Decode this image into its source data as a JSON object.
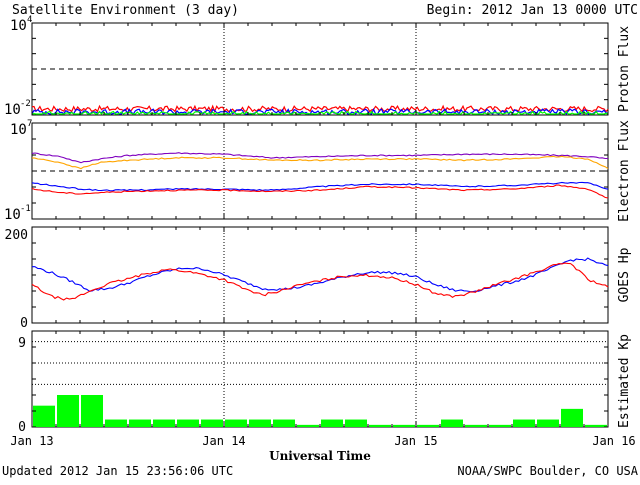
{
  "header": {
    "title": "Satellite Environment (3 day)",
    "begin": "Begin:  2012 Jan 13 0000 UTC"
  },
  "footer": {
    "updated": "Updated 2012 Jan 15 23:56:06 UTC",
    "source": "NOAA/SWPC Boulder, CO USA"
  },
  "x_axis": {
    "label": "Universal Time",
    "ticks": [
      "Jan 13",
      "Jan 14",
      "Jan 15",
      "Jan 16"
    ]
  },
  "colors": {
    "red": "#ff0000",
    "blue": "#0000ff",
    "green": "#00ff00",
    "orange": "#ffa500",
    "purple": "#7f00bf",
    "bar_green": "#00ff00"
  },
  "chart_data": [
    {
      "type": "line",
      "ylabel": "Proton Flux",
      "y_scale": "log",
      "ytick_labels": [
        {
          "base": "10",
          "exp": "4"
        },
        {
          "base": "10",
          "exp": "-2"
        }
      ],
      "ylim_log": [
        -2,
        4
      ],
      "threshold_log": 1,
      "x_days": [
        0,
        3
      ],
      "series": [
        {
          "color": "#ff0000",
          "x": [
            0,
            0.25,
            0.5,
            0.75,
            1,
            1.25,
            1.5,
            1.75,
            2,
            2.25,
            2.5,
            2.75,
            3
          ],
          "log_values": [
            -1.6,
            -1.6,
            -1.6,
            -1.6,
            -1.6,
            -1.6,
            -1.6,
            -1.6,
            -1.6,
            -1.6,
            -1.6,
            -1.6,
            -1.6
          ]
        },
        {
          "color": "#0000ff",
          "x": [
            0,
            0.25,
            0.5,
            0.75,
            1,
            1.25,
            1.5,
            1.75,
            2,
            2.25,
            2.5,
            2.75,
            3
          ],
          "log_values": [
            -1.8,
            -1.8,
            -1.8,
            -1.8,
            -1.8,
            -1.8,
            -1.8,
            -1.8,
            -1.8,
            -1.8,
            -1.8,
            -1.8,
            -1.8
          ]
        },
        {
          "color": "#00ff00",
          "x": [
            0,
            0.25,
            0.5,
            0.75,
            1,
            1.25,
            1.5,
            1.75,
            2,
            2.25,
            2.5,
            2.75,
            3
          ],
          "log_values": [
            -1.95,
            -1.95,
            -1.95,
            -1.95,
            -1.95,
            -1.95,
            -1.95,
            -1.95,
            -1.95,
            -1.95,
            -1.95,
            -1.95,
            -1.95
          ]
        }
      ]
    },
    {
      "type": "line",
      "ylabel": "Electron Flux",
      "y_scale": "log",
      "ytick_labels": [
        {
          "base": "10",
          "exp": "7"
        },
        {
          "base": "10",
          "exp": "-1"
        }
      ],
      "ylim_log": [
        -1,
        7
      ],
      "threshold_log": 3,
      "x_days": [
        0,
        3
      ],
      "series": [
        {
          "color": "#7f00bf",
          "x": [
            0,
            0.15,
            0.25,
            0.35,
            0.5,
            0.75,
            1,
            1.25,
            1.5,
            1.75,
            2,
            2.25,
            2.5,
            2.75,
            2.9,
            3
          ],
          "log_values": [
            4.5,
            4.2,
            3.7,
            4.0,
            4.3,
            4.5,
            4.4,
            4.1,
            4.2,
            4.3,
            4.3,
            4.4,
            4.4,
            4.3,
            4.2,
            4.0
          ]
        },
        {
          "color": "#ffa500",
          "x": [
            0,
            0.15,
            0.25,
            0.35,
            0.5,
            0.75,
            1,
            1.25,
            1.5,
            1.75,
            2,
            2.25,
            2.5,
            2.75,
            2.9,
            3
          ],
          "log_values": [
            4.1,
            3.7,
            3.2,
            3.7,
            3.9,
            4.1,
            4.1,
            3.9,
            3.9,
            4.0,
            4.0,
            3.9,
            4.0,
            4.2,
            4.0,
            3.2
          ]
        },
        {
          "color": "#0000ff",
          "x": [
            0,
            0.15,
            0.25,
            0.35,
            0.5,
            0.75,
            1,
            1.25,
            1.5,
            1.75,
            2,
            2.25,
            2.5,
            2.75,
            2.9,
            3
          ],
          "log_values": [
            2.0,
            1.7,
            1.5,
            1.4,
            1.4,
            1.5,
            1.5,
            1.4,
            1.7,
            1.9,
            1.9,
            1.7,
            1.8,
            2.0,
            2.0,
            1.5
          ]
        },
        {
          "color": "#ff0000",
          "x": [
            0,
            0.15,
            0.25,
            0.35,
            0.5,
            0.75,
            1,
            1.25,
            1.5,
            1.75,
            2,
            2.25,
            2.5,
            2.75,
            2.9,
            3
          ],
          "log_values": [
            1.5,
            1.2,
            1.1,
            1.2,
            1.3,
            1.4,
            1.4,
            1.3,
            1.4,
            1.7,
            1.6,
            1.4,
            1.5,
            1.8,
            1.5,
            0.7
          ]
        }
      ]
    },
    {
      "type": "line",
      "ylabel": "GOES Hp",
      "ytick_labels": [
        "200",
        "0"
      ],
      "ylim": [
        0,
        200
      ],
      "x_days": [
        0,
        3
      ],
      "series": [
        {
          "color": "#0000ff",
          "x": [
            0,
            0.1,
            0.2,
            0.3,
            0.4,
            0.5,
            0.6,
            0.7,
            0.8,
            0.9,
            1.0,
            1.1,
            1.2,
            1.3,
            1.4,
            1.5,
            1.6,
            1.7,
            1.8,
            1.9,
            2.0,
            2.1,
            2.2,
            2.3,
            2.4,
            2.5,
            2.6,
            2.7,
            2.8,
            2.9,
            3.0
          ],
          "values": [
            118,
            105,
            88,
            68,
            72,
            83,
            97,
            108,
            115,
            112,
            100,
            86,
            72,
            70,
            75,
            84,
            94,
            103,
            106,
            104,
            96,
            80,
            68,
            66,
            76,
            85,
            97,
            113,
            131,
            133,
            118
          ]
        },
        {
          "color": "#ff0000",
          "x": [
            0,
            0.1,
            0.2,
            0.3,
            0.4,
            0.5,
            0.6,
            0.7,
            0.8,
            0.9,
            1.0,
            1.1,
            1.2,
            1.3,
            1.4,
            1.5,
            1.6,
            1.7,
            1.8,
            1.9,
            2.0,
            2.1,
            2.2,
            2.3,
            2.4,
            2.5,
            2.6,
            2.7,
            2.8,
            2.9,
            3.0
          ],
          "values": [
            80,
            55,
            48,
            66,
            82,
            92,
            103,
            112,
            108,
            100,
            90,
            72,
            58,
            68,
            80,
            88,
            96,
            100,
            98,
            92,
            80,
            62,
            55,
            64,
            78,
            90,
            103,
            118,
            126,
            90,
            75
          ]
        }
      ]
    },
    {
      "type": "bar",
      "ylabel": "Estimated Kp",
      "ytick_labels": [
        "9",
        "0"
      ],
      "ylim": [
        0,
        9
      ],
      "dotted_levels": [
        4,
        6,
        8
      ],
      "bar_hours": 3,
      "values": [
        2,
        3,
        3,
        0.7,
        0.7,
        0.7,
        0.7,
        0.7,
        0.7,
        0.7,
        0.7,
        0.2,
        0.7,
        0.7,
        0.2,
        0.2,
        0.2,
        0.7,
        0.2,
        0.2,
        0.7,
        0.7,
        1.7,
        0.2
      ]
    }
  ]
}
